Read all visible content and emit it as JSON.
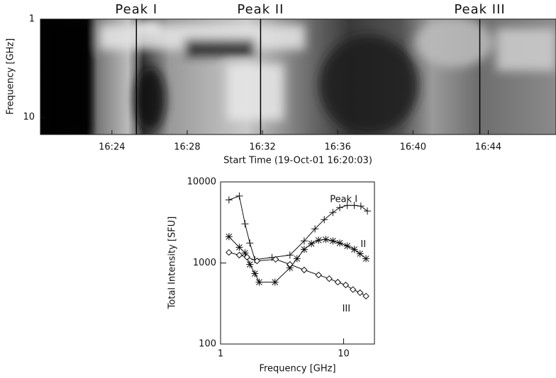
{
  "chart_data": [
    {
      "type": "spectrogram",
      "x_label": "Start Time (19-Oct-01 16:20:03)",
      "y_label": "Frequency [GHz]",
      "xlim": [
        20.2,
        47.6
      ],
      "xticks": [
        {
          "value": 24,
          "label": "16:24"
        },
        {
          "value": 28,
          "label": "16:28"
        },
        {
          "value": 32,
          "label": "16:32"
        },
        {
          "value": 36,
          "label": "16:36"
        },
        {
          "value": 40,
          "label": "16:40"
        },
        {
          "value": 44,
          "label": "16:44"
        }
      ],
      "ylim": [
        1,
        15
      ],
      "yticks": [
        1,
        10
      ],
      "log_y": true,
      "y_inverted": true,
      "peaks": [
        {
          "label": "Peak I",
          "time": 25.3
        },
        {
          "label": "Peak II",
          "time": 31.9
        },
        {
          "label": "Peak III",
          "time": 43.55
        }
      ]
    },
    {
      "type": "line",
      "x_label": "Frequency [GHz]",
      "y_label": "Total Intensity [SFU]",
      "log_x": true,
      "log_y": true,
      "xlim": [
        1,
        17.8
      ],
      "xticks": [
        1,
        10
      ],
      "ylim": [
        100,
        10000
      ],
      "yticks": [
        100,
        1000,
        10000
      ],
      "series": [
        {
          "name": "Peak I",
          "color": "#111111",
          "marker": "plus",
          "x": [
            1.17,
            1.42,
            1.58,
            1.73,
            1.9,
            2.62,
            3.66,
            4.78,
            5.85,
            6.96,
            8.18,
            9.3,
            10.7,
            12.2,
            13.8,
            15.6
          ],
          "values": [
            6000,
            6700,
            3040,
            1760,
            1100,
            1170,
            1250,
            1870,
            2630,
            3430,
            4200,
            4830,
            5130,
            5130,
            5030,
            4370
          ]
        },
        {
          "name": "II",
          "color": "#111111",
          "marker": "asterisk",
          "x": [
            1.17,
            1.42,
            1.58,
            1.73,
            1.9,
            2.06,
            2.77,
            3.66,
            4.18,
            4.78,
            5.47,
            6.26,
            7.16,
            8.18,
            9.3,
            10.7,
            12.2,
            13.6,
            15.2
          ],
          "values": [
            2110,
            1560,
            1330,
            960,
            740,
            580,
            580,
            870,
            1130,
            1470,
            1730,
            1910,
            1950,
            1870,
            1760,
            1620,
            1470,
            1300,
            1130
          ]
        },
        {
          "name": "III",
          "color": "#111111",
          "marker": "diamond",
          "x": [
            1.17,
            1.42,
            1.64,
            1.98,
            2.8,
            3.66,
            4.78,
            6.26,
            7.63,
            8.97,
            10.4,
            11.9,
            13.6,
            15.2
          ],
          "values": [
            1350,
            1250,
            1180,
            1060,
            1110,
            960,
            820,
            710,
            640,
            580,
            535,
            470,
            430,
            390
          ]
        }
      ]
    }
  ]
}
